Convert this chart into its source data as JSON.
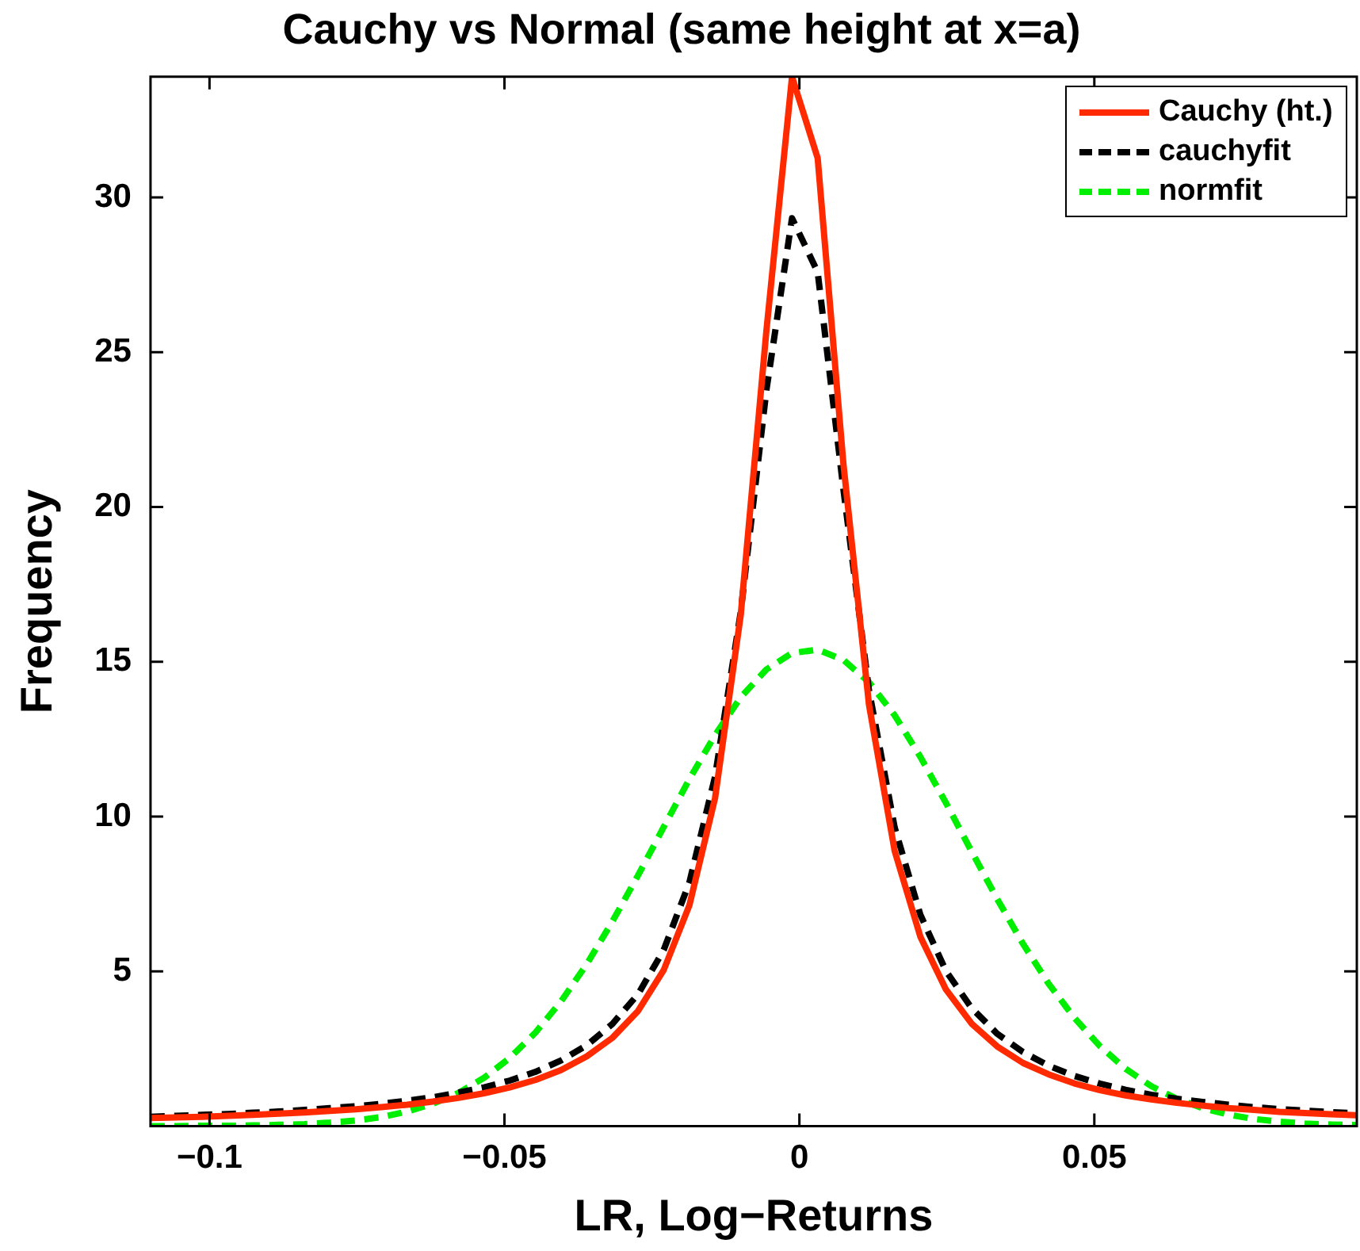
{
  "chart_data": {
    "type": "line",
    "title": "Cauchy vs Normal (same height at x=a)",
    "xlabel": "LR, Log−Returns",
    "ylabel": "Frequency",
    "x": [
      -0.11,
      -0.10565,
      -0.1013,
      -0.09695,
      -0.0926,
      -0.08825,
      -0.0839,
      -0.07955,
      -0.0752,
      -0.07085,
      -0.0665,
      -0.06215,
      -0.0578,
      -0.05345,
      -0.0491,
      -0.04475,
      -0.0404,
      -0.03605,
      -0.0317,
      -0.02735,
      -0.023,
      -0.01865,
      -0.0143,
      -0.00995,
      -0.0056,
      -0.00125,
      0.0031,
      0.00745,
      0.0118,
      0.01615,
      0.0205,
      0.02485,
      0.0292,
      0.03355,
      0.0379,
      0.04225,
      0.0466,
      0.05095,
      0.0553,
      0.05965,
      0.064,
      0.06835,
      0.0727,
      0.07705,
      0.0814,
      0.08575,
      0.0901,
      0.09445
    ],
    "series": [
      {
        "name": "Cauchy (ht.)",
        "color": "#ff2a00",
        "line_style": "solid",
        "values": [
          0.26,
          0.28,
          0.3,
          0.33,
          0.36,
          0.4,
          0.44,
          0.49,
          0.54,
          0.61,
          0.69,
          0.79,
          0.91,
          1.06,
          1.25,
          1.49,
          1.81,
          2.25,
          2.85,
          3.72,
          5.04,
          7.13,
          10.59,
          16.5,
          25.68,
          33.9,
          31.27,
          21.42,
          13.61,
          8.89,
          6.12,
          4.41,
          3.31,
          2.57,
          2.04,
          1.67,
          1.38,
          1.16,
          0.99,
          0.86,
          0.75,
          0.66,
          0.58,
          0.52,
          0.46,
          0.42,
          0.38,
          0.35
        ]
      },
      {
        "name": "cauchyfit",
        "color": "#000000",
        "line_style": "dashed",
        "values": [
          0.3,
          0.33,
          0.36,
          0.39,
          0.43,
          0.47,
          0.52,
          0.58,
          0.64,
          0.72,
          0.82,
          0.93,
          1.08,
          1.25,
          1.47,
          1.75,
          2.12,
          2.61,
          3.3,
          4.26,
          5.69,
          7.87,
          11.29,
          16.6,
          23.76,
          29.33,
          27.59,
          20.59,
          14.08,
          9.65,
          6.83,
          5.01,
          3.81,
          2.98,
          2.39,
          1.95,
          1.62,
          1.37,
          1.17,
          1.01,
          0.88,
          0.78,
          0.69,
          0.61,
          0.55,
          0.5,
          0.45,
          0.41
        ]
      },
      {
        "name": "normfit",
        "color": "#00ee00",
        "line_style": "dashed",
        "values": [
          0.0,
          0.0,
          0.01,
          0.01,
          0.02,
          0.04,
          0.06,
          0.11,
          0.18,
          0.29,
          0.47,
          0.72,
          1.07,
          1.56,
          2.2,
          3.02,
          4.03,
          5.23,
          6.61,
          8.1,
          9.66,
          11.21,
          12.63,
          13.85,
          14.75,
          15.28,
          15.39,
          15.06,
          14.34,
          13.27,
          11.93,
          10.44,
          8.87,
          7.33,
          5.89,
          4.6,
          3.5,
          2.58,
          1.85,
          1.29,
          0.88,
          0.58,
          0.37,
          0.23,
          0.14,
          0.08,
          0.05,
          0.03
        ]
      }
    ],
    "xlim": [
      -0.11,
      0.0945
    ],
    "xticks": [
      {
        "value": -0.1,
        "label": "−0.1"
      },
      {
        "value": -0.05,
        "label": "−0.05"
      },
      0,
      0.05
    ],
    "ylim": [
      0,
      33.9
    ],
    "yticks": [
      5,
      10,
      15,
      20,
      25,
      30
    ],
    "grid": false,
    "legend": "top right",
    "marker": "none"
  }
}
